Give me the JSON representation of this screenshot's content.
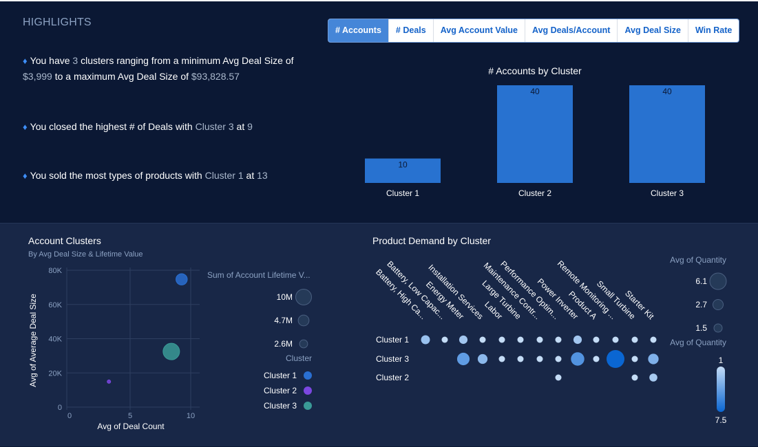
{
  "highlights": {
    "title": "HIGHLIGHTS",
    "items": [
      {
        "parts": [
          {
            "t": "You have ",
            "hi": false
          },
          {
            "t": "3",
            "hi": true
          },
          {
            "t": " clusters ranging from a minimum Avg Deal Size of ",
            "hi": false
          },
          {
            "t": "$3,999",
            "hi": true
          },
          {
            "t": " to a maximum Avg Deal Size of ",
            "hi": false
          },
          {
            "t": "$93,828.57",
            "hi": true
          }
        ]
      },
      {
        "parts": [
          {
            "t": "You closed the highest # of Deals with ",
            "hi": false
          },
          {
            "t": "Cluster 3",
            "hi": true
          },
          {
            "t": " at ",
            "hi": false
          },
          {
            "t": "9",
            "hi": true
          }
        ]
      },
      {
        "parts": [
          {
            "t": "You sold the most types of products with ",
            "hi": false
          },
          {
            "t": "Cluster 1",
            "hi": true
          },
          {
            "t": " at ",
            "hi": false
          },
          {
            "t": "13",
            "hi": true
          }
        ]
      }
    ]
  },
  "tabs": [
    {
      "label": "# Accounts",
      "active": true
    },
    {
      "label": "# Deals",
      "active": false
    },
    {
      "label": "Avg Account Value",
      "active": false
    },
    {
      "label": "Avg Deals/Account",
      "active": false
    },
    {
      "label": "Avg Deal Size",
      "active": false
    },
    {
      "label": "Win Rate",
      "active": false
    }
  ],
  "colors": {
    "accent": "#4586d8",
    "bar": "#2872d0",
    "cluster1": "#2a6fd1",
    "cluster2": "#7b47e0",
    "cluster3": "#3a9a97"
  },
  "chart_data": [
    {
      "type": "bar",
      "title": "# Accounts by Cluster",
      "categories": [
        "Cluster 1",
        "Cluster 2",
        "Cluster 3"
      ],
      "values": [
        10,
        40,
        40
      ],
      "xlabel": "",
      "ylabel": "",
      "ylim": [
        0,
        40
      ],
      "grid": false
    },
    {
      "type": "scatter",
      "title": "Account Clusters",
      "subtitle": "By Avg Deal Size & Lifetime Value",
      "xlabel": "Avg of Deal Count",
      "ylabel": "Avg of Average Deal Size",
      "xlim": [
        0,
        10.3
      ],
      "ylim": [
        0,
        80000
      ],
      "xticks": [
        0,
        5,
        10
      ],
      "xtick_labels": [
        "0",
        "5",
        "10"
      ],
      "yticks": [
        0,
        20000,
        40000,
        60000,
        80000
      ],
      "ytick_labels": [
        "0",
        "20K",
        "40K",
        "60K",
        "80K"
      ],
      "grid": true,
      "points": [
        {
          "series": "Cluster 1",
          "x": 9.25,
          "y": 74700,
          "size": 4700000
        },
        {
          "series": "Cluster 2",
          "x": 3.25,
          "y": 14900,
          "size": 300000
        },
        {
          "series": "Cluster 3",
          "x": 8.4,
          "y": 32500,
          "size": 10000000
        }
      ],
      "size_legend": {
        "title": "Sum of Account Lifetime V...",
        "values": [
          10000000,
          4700000,
          2600000
        ],
        "labels": [
          "10M",
          "4.7M",
          "2.6M"
        ]
      },
      "color_legend": {
        "title": "Cluster",
        "entries": [
          "Cluster 1",
          "Cluster 2",
          "Cluster 3"
        ]
      }
    },
    {
      "type": "scatter",
      "title": "Product Demand by Cluster",
      "columns": [
        "Battery, High Ca...",
        "Battery, Low Capac...",
        "Energy Meter",
        "Installation Services",
        "Labor",
        "Large Turbine",
        "Maintenance Contr...",
        "Performance Optim...",
        "Power Inverter",
        "Product A",
        "Remote Monitoring ...",
        "Small Turbine",
        "Starter Kit"
      ],
      "rows": [
        "Cluster 1",
        "Cluster 3",
        "Cluster 2"
      ],
      "values": [
        [
          2.5,
          1,
          2.2,
          1,
          1,
          1,
          1,
          1,
          2.2,
          1,
          1,
          1,
          1
        ],
        [
          null,
          null,
          4.5,
          3,
          1,
          1,
          1,
          1,
          5,
          1,
          7.5,
          1,
          3.4
        ],
        [
          null,
          null,
          null,
          null,
          null,
          null,
          null,
          1,
          null,
          null,
          null,
          1,
          2
        ]
      ],
      "size_legend": {
        "title": "Avg of Quantity",
        "values": [
          6.1,
          2.7,
          1.5
        ],
        "labels": [
          "6.1",
          "2.7",
          "1.5"
        ]
      },
      "color_legend": {
        "title": "Avg of Quantity",
        "min_label": "1",
        "max_label": "7.5",
        "min": 1,
        "max": 7.5
      }
    }
  ]
}
